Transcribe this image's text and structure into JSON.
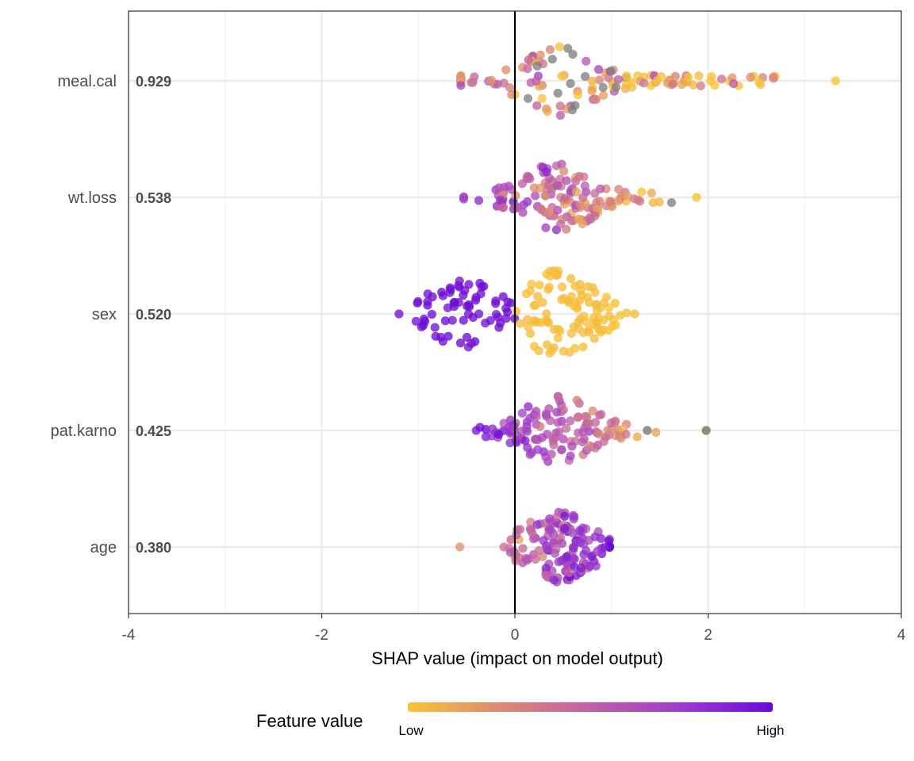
{
  "chart_data": {
    "type": "scatter",
    "subtype": "shap-beeswarm",
    "xlabel": "SHAP value (impact on model output)",
    "xlim": [
      -4,
      4
    ],
    "x_ticks": [
      -4,
      -2,
      0,
      2,
      4
    ],
    "x_tick_labels": [
      "-4",
      "-2",
      "0",
      "2",
      "4"
    ],
    "grid": true,
    "zero_line": true,
    "legend": {
      "title": "Feature value",
      "low_label": "Low",
      "high_label": "High",
      "gradient_colors": [
        "#f8c337",
        "#db8a73",
        "#c061a6",
        "#9d3ccb",
        "#6a0ad6"
      ],
      "missing_color": "#808080",
      "placement": "bottom"
    },
    "features": [
      {
        "name": "meal.cal",
        "importance": "0.929",
        "shap_min": -0.56,
        "shap_max": 3.32,
        "spread": 0.18,
        "n": 130,
        "color_rule": "mixed",
        "grey_center": 0.55,
        "grey_fraction": 0.18
      },
      {
        "name": "wt.loss",
        "importance": "0.538",
        "shap_min": -0.53,
        "shap_max": 1.88,
        "spread": 0.17,
        "n": 140,
        "color_rule": "mixed_left_high",
        "grey_center": 1.6,
        "grey_fraction": 0.05
      },
      {
        "name": "sex",
        "importance": "0.520",
        "shap_min": -1.2,
        "shap_max": 1.24,
        "spread": 0.19,
        "n": 170,
        "color_rule": "binary",
        "binary_split": 0.0
      },
      {
        "name": "pat.karno",
        "importance": "0.425",
        "shap_min": -0.4,
        "shap_max": 1.98,
        "spread": 0.17,
        "n": 130,
        "color_rule": "high_left",
        "grey_points": [
          1.37,
          1.98
        ]
      },
      {
        "name": "age",
        "importance": "0.380",
        "shap_min": -0.57,
        "shap_max": 0.98,
        "spread": 0.17,
        "n": 140,
        "color_rule": "low_left"
      }
    ]
  }
}
